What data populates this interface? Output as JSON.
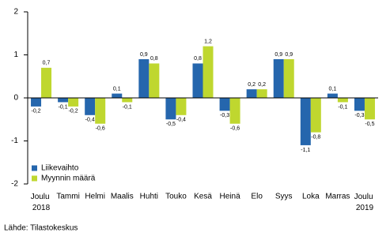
{
  "chart_data": {
    "type": "bar",
    "categories": [
      "Joulu 2018",
      "Tammi",
      "Helmi",
      "Maalis",
      "Huhti",
      "Touko",
      "Kesä",
      "Heinä",
      "Elo",
      "Syys",
      "Loka",
      "Marras",
      "Joulu 2019"
    ],
    "series": [
      {
        "name": "Liikevaihto",
        "color": "#2566ad",
        "values": [
          -0.2,
          -0.1,
          -0.4,
          0.1,
          0.9,
          -0.5,
          0.8,
          -0.3,
          0.2,
          0.9,
          -1.1,
          0.1,
          -0.3
        ],
        "value_labels": [
          "-0,2",
          "-0,1",
          "-0,4",
          "0,1",
          "0,9",
          "-0,5",
          "0,8",
          "-0,3",
          "0,2",
          "0,9",
          "-1,1",
          "0,1",
          "-0,3"
        ]
      },
      {
        "name": "Myynnin määrä",
        "color": "#bfd72f",
        "values": [
          0.7,
          -0.2,
          -0.6,
          -0.1,
          0.8,
          -0.4,
          1.2,
          -0.6,
          0.2,
          0.9,
          -0.8,
          -0.1,
          -0.5
        ],
        "value_labels": [
          "0,7",
          "-0,2",
          "-0,6",
          "-0,1",
          "0,8",
          "-0,4",
          "1,2",
          "-0,6",
          "0,2",
          "0,9",
          "-0,8",
          "-0,1",
          "-0,5"
        ]
      }
    ],
    "ylim": [
      -2,
      2
    ],
    "yticks": [
      -2,
      -1,
      0,
      1,
      2
    ],
    "grid": false,
    "legend": "lower left",
    "source": "Lähde: Tilastokeskus"
  }
}
